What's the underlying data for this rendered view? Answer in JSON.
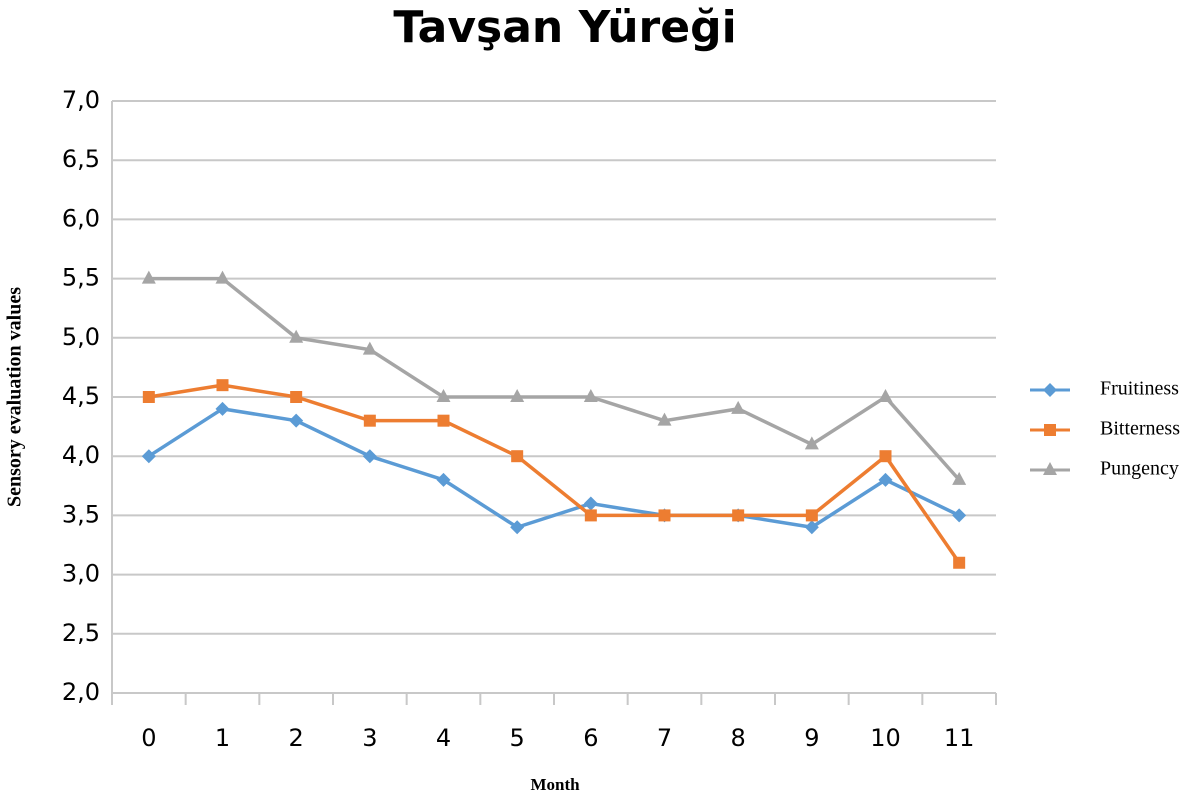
{
  "chart_data": {
    "type": "line",
    "title": "Tavşan Yüreği",
    "x_label": "Month",
    "y_label": "Sensory evaluation values",
    "categories": [
      "0",
      "1",
      "2",
      "3",
      "4",
      "5",
      "6",
      "7",
      "8",
      "9",
      "10",
      "11"
    ],
    "series": [
      {
        "name": "Fruitiness",
        "color": "#5b9bd5",
        "marker": "diamond",
        "values": [
          4.0,
          4.4,
          4.3,
          4.0,
          3.8,
          3.4,
          3.6,
          3.5,
          3.5,
          3.4,
          3.8,
          3.5
        ]
      },
      {
        "name": "Bitterness",
        "color": "#ed7d31",
        "marker": "square",
        "values": [
          4.5,
          4.6,
          4.5,
          4.3,
          4.3,
          4.0,
          3.5,
          3.5,
          3.5,
          3.5,
          4.0,
          3.1
        ]
      },
      {
        "name": "Pungency",
        "color": "#a5a5a5",
        "marker": "triangle",
        "values": [
          5.5,
          5.5,
          5.0,
          4.9,
          4.5,
          4.5,
          4.5,
          4.3,
          4.4,
          4.1,
          4.5,
          3.8
        ]
      }
    ],
    "ylim": [
      2,
      7
    ],
    "yticks": [
      {
        "value": 2,
        "label": "2,0"
      },
      {
        "value": 2.5,
        "label": "2,5"
      },
      {
        "value": 3,
        "label": "3,0"
      },
      {
        "value": 3.5,
        "label": "3,5"
      },
      {
        "value": 4,
        "label": "4,0"
      },
      {
        "value": 4.5,
        "label": "4,5"
      },
      {
        "value": 5,
        "label": "5,0"
      },
      {
        "value": 5.5,
        "label": "5,5"
      },
      {
        "value": 6,
        "label": "6,0"
      },
      {
        "value": 6.5,
        "label": "6,5"
      },
      {
        "value": 7,
        "label": "7,0"
      }
    ],
    "grid": true,
    "legend": "right"
  }
}
